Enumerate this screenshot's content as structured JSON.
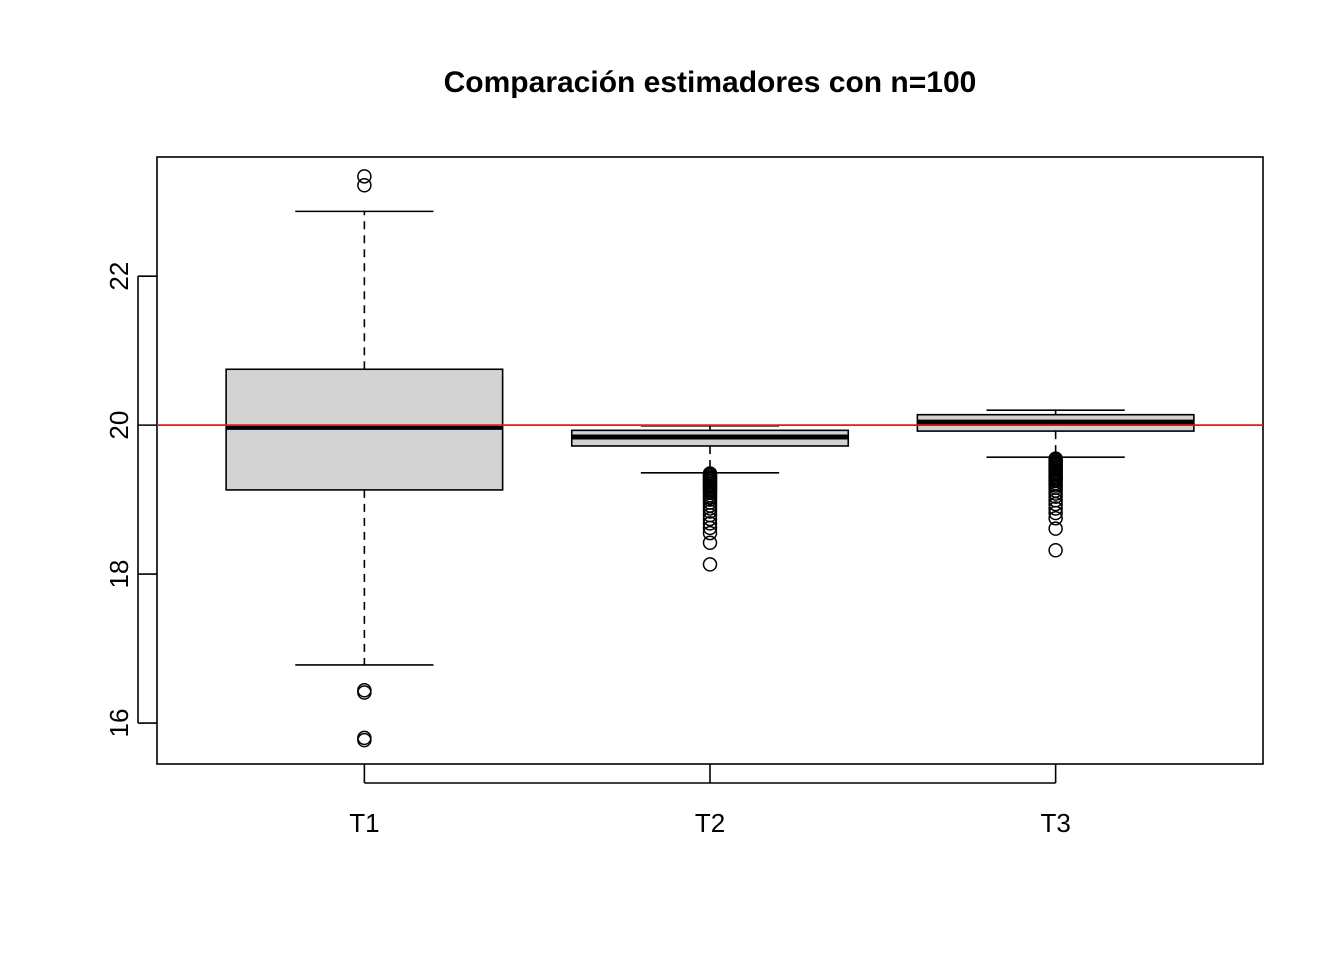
{
  "chart_data": {
    "type": "boxplot",
    "title": "Comparación estimadores con n=100",
    "xlabel": "",
    "ylabel": "",
    "categories": [
      "T1",
      "T2",
      "T3"
    ],
    "ylim": [
      15.45,
      23.6
    ],
    "yticks": [
      16,
      18,
      20,
      22
    ],
    "grid": false,
    "reference_line": {
      "y": 20,
      "color": "#e31a1c"
    },
    "box_fill": "#d3d3d3",
    "boxes": [
      {
        "name": "T1",
        "whisker_low": 16.78,
        "q1": 19.13,
        "median": 19.97,
        "q3": 20.75,
        "whisker_high": 22.87,
        "outliers": [
          23.34,
          23.22,
          16.44,
          16.41,
          15.8,
          15.77
        ]
      },
      {
        "name": "T2",
        "whisker_low": 19.36,
        "q1": 19.72,
        "median": 19.84,
        "q3": 19.93,
        "whisker_high": 19.99,
        "outliers": [
          19.35,
          19.33,
          19.31,
          19.29,
          19.27,
          19.25,
          19.23,
          19.21,
          19.19,
          19.17,
          19.15,
          19.13,
          19.11,
          19.09,
          19.06,
          19.03,
          19.0,
          18.96,
          18.92,
          18.88,
          18.84,
          18.79,
          18.74,
          18.68,
          18.62,
          18.55,
          18.42,
          18.13
        ]
      },
      {
        "name": "T3",
        "whisker_low": 19.57,
        "q1": 19.92,
        "median": 20.04,
        "q3": 20.14,
        "whisker_high": 20.2,
        "outliers": [
          19.55,
          19.53,
          19.51,
          19.49,
          19.47,
          19.45,
          19.43,
          19.41,
          19.39,
          19.37,
          19.35,
          19.33,
          19.31,
          19.29,
          19.27,
          19.25,
          19.22,
          19.19,
          19.16,
          19.12,
          19.08,
          19.04,
          18.99,
          18.94,
          18.88,
          18.82,
          18.75,
          18.61,
          18.32
        ]
      }
    ]
  }
}
